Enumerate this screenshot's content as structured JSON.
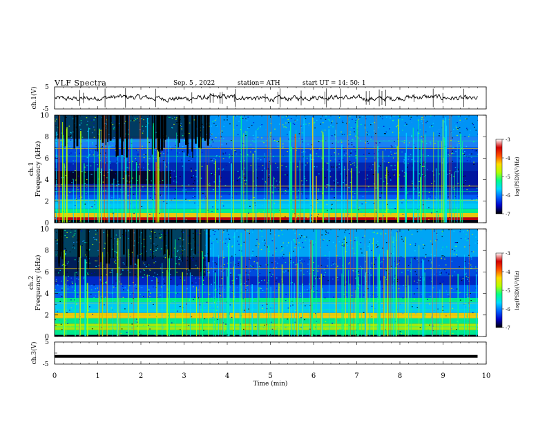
{
  "header": {
    "title": "VLF  Spectra",
    "date": "Sep. 5  , 2022",
    "station": "station= ATH",
    "start": "start  UT  =   14: 50: 1"
  },
  "colors": {
    "spectrogram_background": "#001e96",
    "waveform": "#000000",
    "colormap": [
      "#000000",
      "#0000c8",
      "#0064ff",
      "#00dcff",
      "#00ff8c",
      "#b4ff00",
      "#ffdc00",
      "#ff5000",
      "#d20000",
      "#ffffff"
    ]
  },
  "chart_data": [
    {
      "type": "line",
      "panel": "ch1-waveform",
      "ylabel": "ch.1(V)",
      "ylim": [
        -5,
        5
      ],
      "yticks": [
        "5",
        "-5"
      ],
      "xlim": [
        0,
        10
      ],
      "series": [
        {
          "x": [
            0,
            9.8
          ],
          "y": [
            0,
            0
          ]
        }
      ]
    },
    {
      "type": "heatmap",
      "panel": "ch1-spectrogram",
      "ylabel": "ch.1\nFrequency  (kHz)",
      "ylim": [
        0,
        10
      ],
      "yticks": [
        "0",
        "2",
        "4",
        "6",
        "8",
        "10"
      ],
      "xlim": [
        0,
        10
      ],
      "colorbar": {
        "label": "log(PSD)(V²/Hz)",
        "ticks": [
          "-3",
          "-4",
          "-5",
          "-6",
          "-7"
        ],
        "range": [
          -7,
          -3
        ]
      }
    },
    {
      "type": "heatmap",
      "panel": "ch2-spectrogram",
      "ylabel": "ch.2\nFrequency  (kHz)",
      "ylim": [
        0,
        10
      ],
      "yticks": [
        "0",
        "2",
        "4",
        "6",
        "8",
        "10"
      ],
      "xlim": [
        0,
        10
      ],
      "colorbar": {
        "label": "log(PSD)(V²/Hz)",
        "ticks": [
          "-3",
          "-4",
          "-5",
          "-6",
          "-7"
        ],
        "range": [
          -7,
          -3
        ]
      }
    },
    {
      "type": "line",
      "panel": "ch3-waveform",
      "ylabel": "ch.3(V)",
      "ylim": [
        -5,
        5
      ],
      "yticks": [
        "5",
        "-5"
      ],
      "xlim": [
        0,
        10
      ],
      "series": [
        {
          "x": [
            0,
            9.8
          ],
          "y": [
            -1.5,
            -1.5
          ]
        }
      ]
    }
  ],
  "xaxis": {
    "label": "Time  (min)",
    "ticks": [
      "0",
      "1",
      "2",
      "3",
      "4",
      "5",
      "6",
      "7",
      "8",
      "9",
      "10"
    ]
  }
}
